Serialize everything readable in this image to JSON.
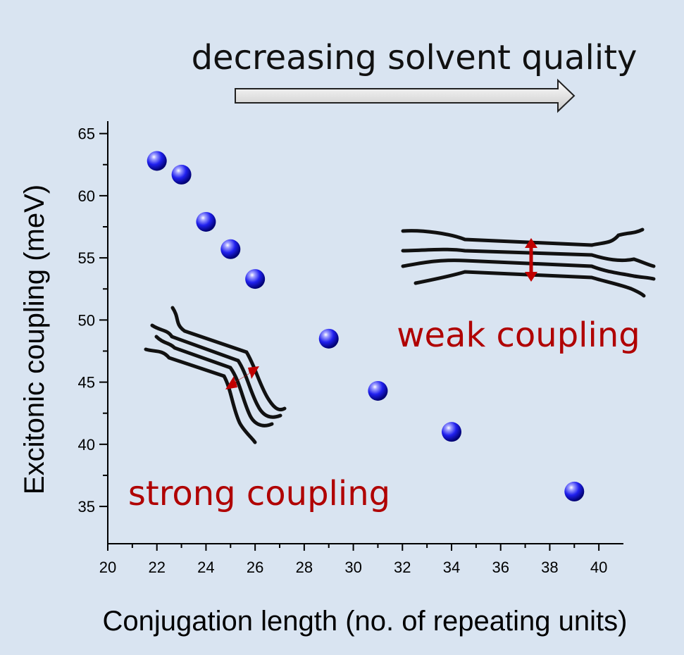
{
  "chart_data": {
    "type": "scatter",
    "title": "",
    "xlabel": "Conjugation length (no. of repeating units)",
    "ylabel": "Excitonic coupling (meV)",
    "xlim": [
      20,
      41
    ],
    "ylim": [
      32,
      66
    ],
    "x_ticks": [
      "20",
      "22",
      "24",
      "26",
      "28",
      "30",
      "32",
      "34",
      "36",
      "38",
      "40"
    ],
    "y_ticks": [
      "35",
      "40",
      "45",
      "50",
      "55",
      "60",
      "65"
    ],
    "series": [
      {
        "x": [
          22,
          23,
          24,
          25,
          26,
          29,
          31,
          34,
          39
        ],
        "y": [
          62.8,
          61.7,
          57.9,
          55.7,
          53.3,
          48.5,
          44.3,
          41.0,
          36.2
        ]
      }
    ],
    "annotations": {
      "top_arrow": "decreasing solvent quality",
      "strong": "strong coupling",
      "weak": "weak coupling"
    },
    "grid": false,
    "marker_color": "#1a1aff"
  }
}
